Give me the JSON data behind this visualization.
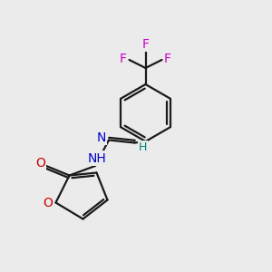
{
  "bg_color": "#ebebeb",
  "bond_color": "#1a1a1a",
  "O_color": "#cc0000",
  "N_color": "#0000cc",
  "F_color": "#cc00cc",
  "H_color": "#008080",
  "figsize": [
    3.0,
    3.0
  ],
  "dpi": 100,
  "xlim": [
    0,
    10
  ],
  "ylim": [
    0,
    10
  ]
}
